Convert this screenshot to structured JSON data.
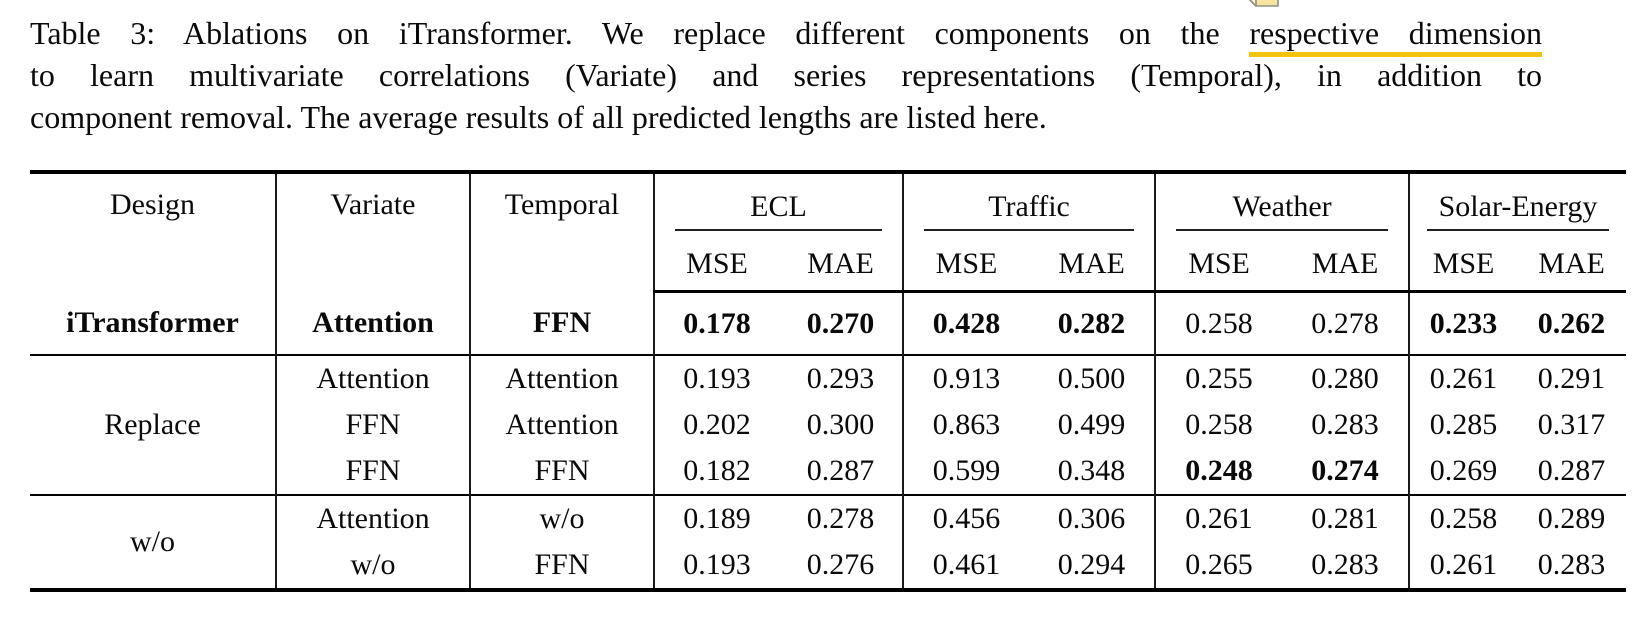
{
  "caption": {
    "line1_prefix": "Table 3: Ablations on iTransformer. We replace different components on the",
    "line1_highlight": "respective dimension",
    "line2": "to learn multivariate correlations (Variate) and series representations (Temporal), in addition to",
    "line3": "component removal. The average results of all predicted lengths are listed here."
  },
  "annotation": {
    "type": "highlight-underline-with-note",
    "underline_color": "#f2c30f",
    "note_fill": "#f6e59e",
    "note_fold_fill": "#fbf2c8",
    "note_border": "#8f8f85"
  },
  "table": {
    "columns": [
      "Design",
      "Variate",
      "Temporal"
    ],
    "groups": [
      {
        "label": "ECL"
      },
      {
        "label": "Traffic"
      },
      {
        "label": "Weather"
      },
      {
        "label": "Solar-Energy"
      }
    ],
    "metric_headers": [
      "MSE",
      "MAE"
    ],
    "body": {
      "groups": [
        {
          "design": "iTransformer",
          "design_bold": true,
          "rows": [
            {
              "variate": "Attention",
              "temporal": "FFN",
              "labels_bold": true,
              "values": [
                "0.178",
                "0.270",
                "0.428",
                "0.282",
                "0.258",
                "0.278",
                "0.233",
                "0.262"
              ],
              "bold": [
                true,
                true,
                true,
                true,
                false,
                false,
                true,
                true
              ]
            }
          ]
        },
        {
          "design": "Replace",
          "design_bold": false,
          "rows": [
            {
              "variate": "Attention",
              "temporal": "Attention",
              "labels_bold": false,
              "values": [
                "0.193",
                "0.293",
                "0.913",
                "0.500",
                "0.255",
                "0.280",
                "0.261",
                "0.291"
              ],
              "bold": [
                false,
                false,
                false,
                false,
                false,
                false,
                false,
                false
              ]
            },
            {
              "variate": "FFN",
              "temporal": "Attention",
              "labels_bold": false,
              "values": [
                "0.202",
                "0.300",
                "0.863",
                "0.499",
                "0.258",
                "0.283",
                "0.285",
                "0.317"
              ],
              "bold": [
                false,
                false,
                false,
                false,
                false,
                false,
                false,
                false
              ]
            },
            {
              "variate": "FFN",
              "temporal": "FFN",
              "labels_bold": false,
              "values": [
                "0.182",
                "0.287",
                "0.599",
                "0.348",
                "0.248",
                "0.274",
                "0.269",
                "0.287"
              ],
              "bold": [
                false,
                false,
                false,
                false,
                true,
                true,
                false,
                false
              ]
            }
          ]
        },
        {
          "design": "w/o",
          "design_bold": false,
          "rows": [
            {
              "variate": "Attention",
              "temporal": "w/o",
              "labels_bold": false,
              "values": [
                "0.189",
                "0.278",
                "0.456",
                "0.306",
                "0.261",
                "0.281",
                "0.258",
                "0.289"
              ],
              "bold": [
                false,
                false,
                false,
                false,
                false,
                false,
                false,
                false
              ]
            },
            {
              "variate": "w/o",
              "temporal": "FFN",
              "labels_bold": false,
              "values": [
                "0.193",
                "0.276",
                "0.461",
                "0.294",
                "0.265",
                "0.283",
                "0.261",
                "0.283"
              ],
              "bold": [
                false,
                false,
                false,
                false,
                false,
                false,
                false,
                false
              ]
            }
          ]
        }
      ]
    }
  }
}
